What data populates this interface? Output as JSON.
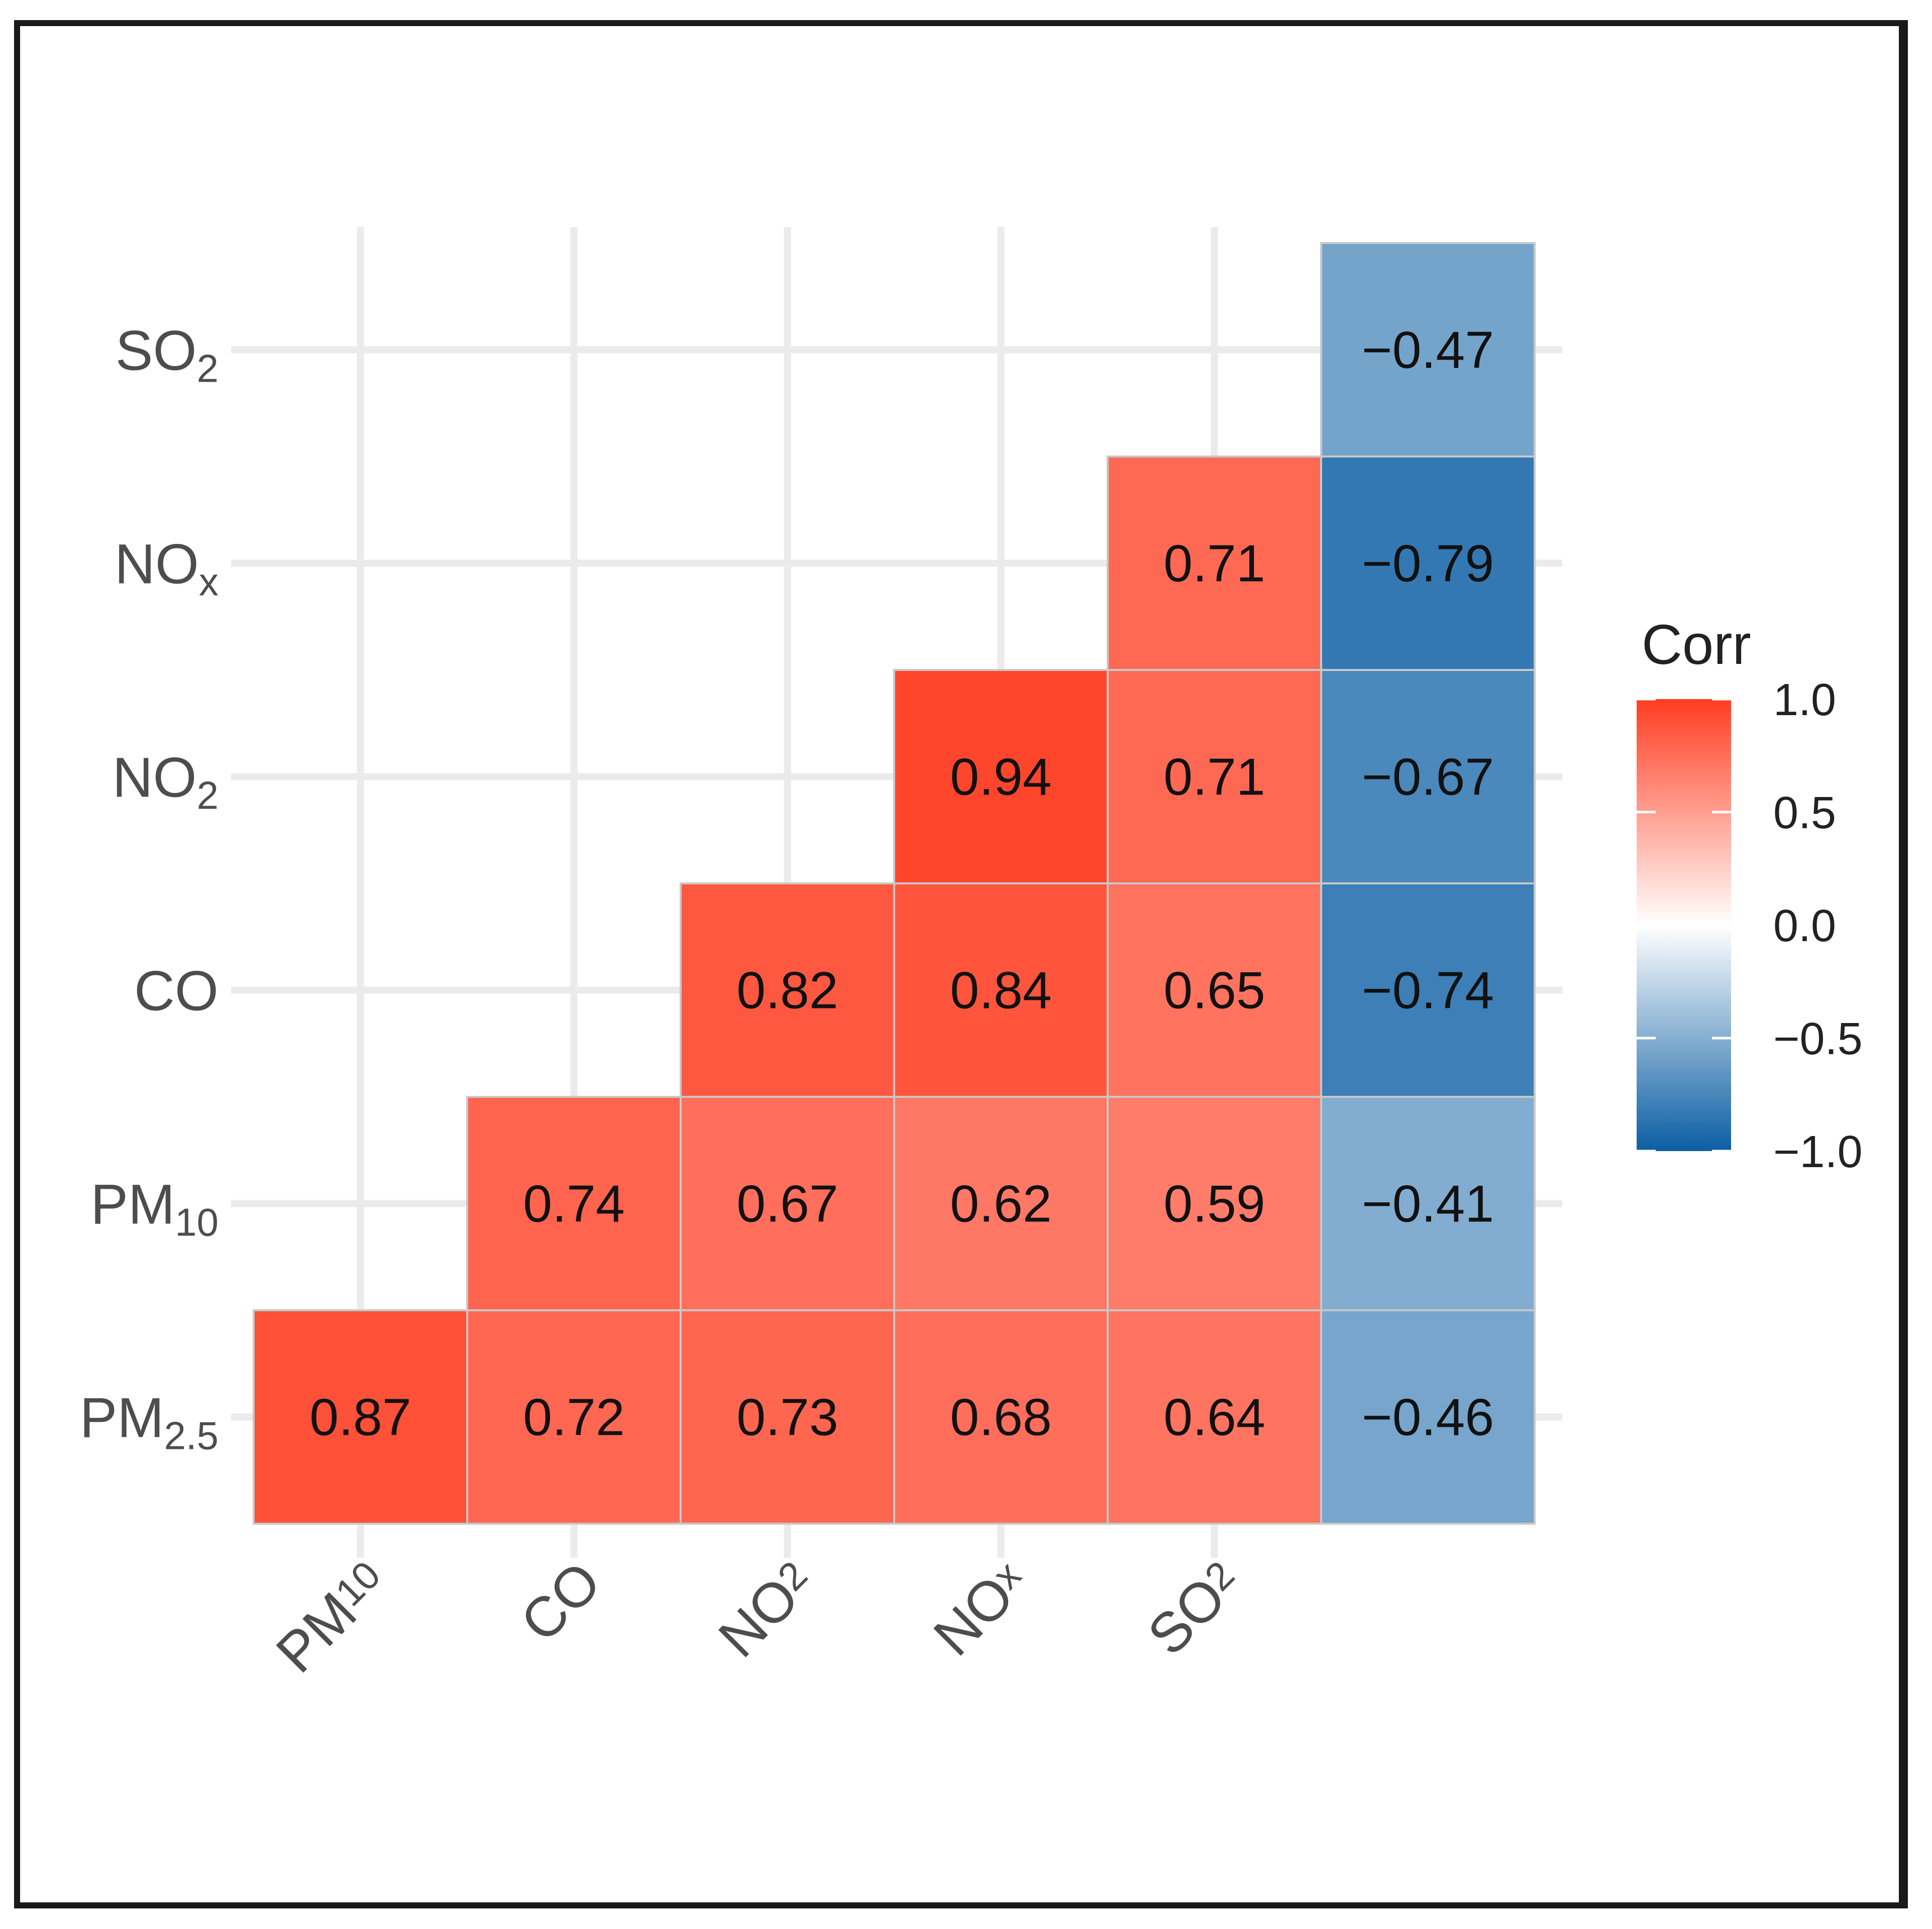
{
  "chart_data": {
    "type": "heatmap",
    "legend": {
      "title": "Corr",
      "ticks": [
        1.0,
        0.5,
        0.0,
        -0.5,
        -1.0
      ],
      "tick_labels": [
        "1.0",
        "0.5",
        "0.0",
        "−0.5",
        "−1.0"
      ],
      "colors": {
        "high": "#ff3d22",
        "mid": "#ffffff",
        "low": "#0c5ea3"
      },
      "range": [
        -1,
        1
      ],
      "placement": "right"
    },
    "x_labels": [
      {
        "base": "PM",
        "sub": "10"
      },
      {
        "base": "CO",
        "sub": ""
      },
      {
        "base": "NO",
        "sub": "2"
      },
      {
        "base": "NO",
        "sub": "x"
      },
      {
        "base": "SO",
        "sub": "2"
      },
      {
        "base": "",
        "sub": ""
      }
    ],
    "y_labels": [
      {
        "base": "PM",
        "sub": "2.5"
      },
      {
        "base": "PM",
        "sub": "10"
      },
      {
        "base": "CO",
        "sub": ""
      },
      {
        "base": "NO",
        "sub": "2"
      },
      {
        "base": "NO",
        "sub": "x"
      },
      {
        "base": "SO",
        "sub": "2"
      }
    ],
    "cells": [
      {
        "x": 0,
        "y": 0,
        "value": 0.87,
        "label": "0.87"
      },
      {
        "x": 1,
        "y": 0,
        "value": 0.72,
        "label": "0.72"
      },
      {
        "x": 2,
        "y": 0,
        "value": 0.73,
        "label": "0.73"
      },
      {
        "x": 3,
        "y": 0,
        "value": 0.68,
        "label": "0.68"
      },
      {
        "x": 4,
        "y": 0,
        "value": 0.64,
        "label": "0.64"
      },
      {
        "x": 5,
        "y": 0,
        "value": -0.46,
        "label": "−0.46"
      },
      {
        "x": 1,
        "y": 1,
        "value": 0.74,
        "label": "0.74"
      },
      {
        "x": 2,
        "y": 1,
        "value": 0.67,
        "label": "0.67"
      },
      {
        "x": 3,
        "y": 1,
        "value": 0.62,
        "label": "0.62"
      },
      {
        "x": 4,
        "y": 1,
        "value": 0.59,
        "label": "0.59"
      },
      {
        "x": 5,
        "y": 1,
        "value": -0.41,
        "label": "−0.41"
      },
      {
        "x": 2,
        "y": 2,
        "value": 0.82,
        "label": "0.82"
      },
      {
        "x": 3,
        "y": 2,
        "value": 0.84,
        "label": "0.84"
      },
      {
        "x": 4,
        "y": 2,
        "value": 0.65,
        "label": "0.65"
      },
      {
        "x": 5,
        "y": 2,
        "value": -0.74,
        "label": "−0.74"
      },
      {
        "x": 3,
        "y": 3,
        "value": 0.94,
        "label": "0.94"
      },
      {
        "x": 4,
        "y": 3,
        "value": 0.71,
        "label": "0.71"
      },
      {
        "x": 5,
        "y": 3,
        "value": -0.67,
        "label": "−0.67"
      },
      {
        "x": 4,
        "y": 4,
        "value": 0.71,
        "label": "0.71"
      },
      {
        "x": 5,
        "y": 4,
        "value": -0.79,
        "label": "−0.79"
      },
      {
        "x": 5,
        "y": 5,
        "value": -0.47,
        "label": "−0.47"
      }
    ]
  }
}
